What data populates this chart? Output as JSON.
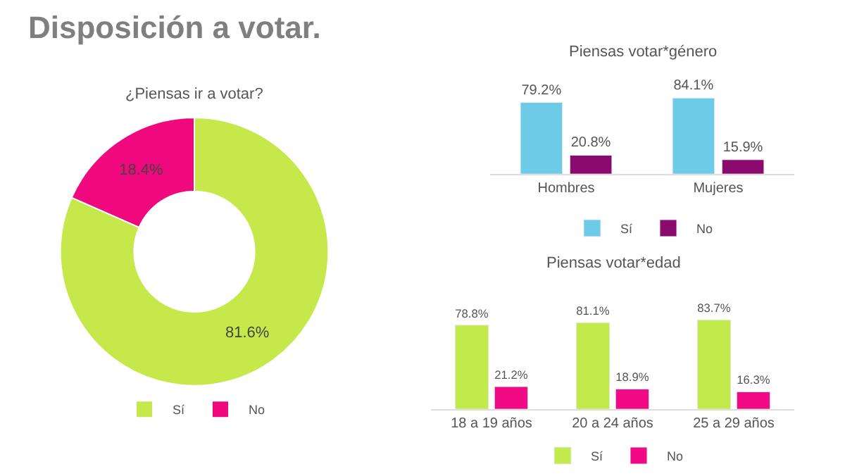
{
  "chart_data": [
    {
      "type": "donut",
      "title": "Disposición a votar.",
      "subtitle": "¿Piensas ir a votar?",
      "categories": [
        "Sí",
        "No"
      ],
      "values": [
        81.6,
        18.4
      ],
      "colors": [
        "#c5e84a",
        "#f0087f"
      ],
      "value_labels": [
        "81.6%",
        "18.4%"
      ],
      "legend": "bottom"
    },
    {
      "type": "bar",
      "title": "Piensas votar*género",
      "categories": [
        "Hombres",
        "Mujeres"
      ],
      "legend": "bottom",
      "series": [
        {
          "name": "Sí",
          "color": "#6dcbe8",
          "values": [
            79.2,
            84.1
          ],
          "value_labels": [
            "79.2%",
            "84.1%"
          ]
        },
        {
          "name": "No",
          "color": "#8b0a6e",
          "values": [
            20.8,
            15.9
          ],
          "value_labels": [
            "20.8%",
            "15.9%"
          ]
        }
      ]
    },
    {
      "type": "bar",
      "title": "Piensas votar*edad",
      "categories": [
        "18 a 19 años",
        "20 a 24 años",
        "25 a 29 años"
      ],
      "legend": "bottom",
      "series": [
        {
          "name": "Sí",
          "color": "#c2ea4a",
          "values": [
            78.8,
            81.1,
            83.7
          ],
          "value_labels": [
            "78.8%",
            "81.1%",
            "83.7%"
          ]
        },
        {
          "name": "No",
          "color": "#f20a85",
          "values": [
            21.2,
            18.9,
            16.3
          ],
          "value_labels": [
            "21.2%",
            "18.9%",
            "16.3%"
          ]
        }
      ]
    }
  ]
}
